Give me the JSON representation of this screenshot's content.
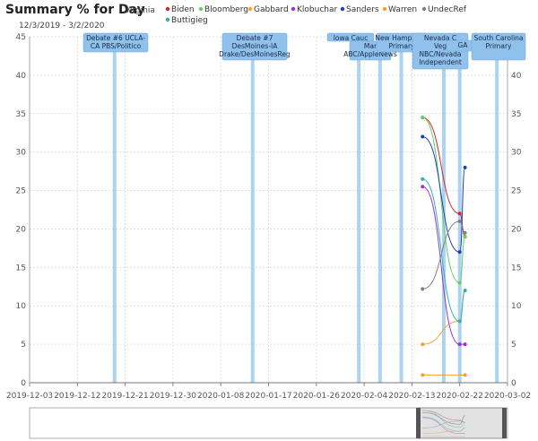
{
  "header": {
    "title": "Summary % for Day",
    "state": "Virginia",
    "date_range": "12/3/2019 - 3/2/2020"
  },
  "colors": {
    "Biden": "#d62728",
    "Bloomberg": "#5ed35e",
    "Gabbard": "#f2a02b",
    "Klobuchar": "#9b30d9",
    "Sanders": "#1f3fb5",
    "Warren": "#f2a02b",
    "UndecRef": "#808080",
    "Buttigieg": "#2bb5b0"
  },
  "chart_data": {
    "type": "line",
    "x_type": "date",
    "x_range": [
      "2019-12-03",
      "2020-03-02"
    ],
    "ylim": [
      0,
      45
    ],
    "y_ticks": [
      0,
      5,
      10,
      15,
      20,
      25,
      30,
      35,
      40,
      45
    ],
    "x_ticks": [
      "2019-12-03",
      "2019-12-12",
      "2019-12-21",
      "2019-12-30",
      "2020-01-08",
      "2020-01-17",
      "2020-01-26",
      "2020-02-04",
      "2020-02-13",
      "2020-02-22",
      "2020-03-02"
    ],
    "grid": true,
    "legend": [
      "Biden",
      "Bloomberg",
      "Gabbard",
      "Klobuchar",
      "Sanders",
      "Warren",
      "UndecRef",
      "Buttigieg"
    ],
    "series": [
      {
        "name": "Biden",
        "points": [
          [
            "2020-02-15",
            34.5
          ],
          [
            "2020-02-22",
            22
          ],
          [
            "2020-02-23",
            19
          ]
        ]
      },
      {
        "name": "Bloomberg",
        "points": [
          [
            "2020-02-15",
            34.5
          ],
          [
            "2020-02-22",
            13
          ],
          [
            "2020-02-23",
            19
          ]
        ]
      },
      {
        "name": "Gabbard",
        "points": [
          [
            "2020-02-15",
            1
          ],
          [
            "2020-02-23",
            1
          ]
        ]
      },
      {
        "name": "Klobuchar",
        "points": [
          [
            "2020-02-15",
            25.5
          ],
          [
            "2020-02-22",
            5
          ],
          [
            "2020-02-23",
            5
          ]
        ]
      },
      {
        "name": "Sanders",
        "points": [
          [
            "2020-02-15",
            32
          ],
          [
            "2020-02-22",
            17
          ],
          [
            "2020-02-23",
            28
          ]
        ]
      },
      {
        "name": "Warren",
        "points": [
          [
            "2020-02-15",
            5
          ],
          [
            "2020-02-22",
            8
          ],
          [
            "2020-02-23",
            12
          ]
        ]
      },
      {
        "name": "UndecRef",
        "points": [
          [
            "2020-02-15",
            12.2
          ],
          [
            "2020-02-22",
            21
          ],
          [
            "2020-02-23",
            19.5
          ]
        ]
      },
      {
        "name": "Buttigieg",
        "points": [
          [
            "2020-02-15",
            26.5
          ],
          [
            "2020-02-22",
            8
          ],
          [
            "2020-02-23",
            12
          ]
        ]
      }
    ],
    "events": [
      {
        "date": "2019-12-19",
        "label": [
          "Debate #6 UCLA-",
          "CA PBS/Politico"
        ]
      },
      {
        "date": "2020-01-14",
        "label": [
          "Debate #7",
          "DesMoines-IA",
          "Drake/DesMoinesReg"
        ]
      },
      {
        "date": "2020-02-03",
        "label": [
          "Iowa Cauc"
        ]
      },
      {
        "date": "2020-02-07",
        "label": [
          "Mar",
          "ABC/AppleNews"
        ]
      },
      {
        "date": "2020-02-11",
        "label": [
          "New Hampshire",
          "Primary"
        ]
      },
      {
        "date": "2020-02-19",
        "label": [
          "Nevada C",
          "Veg",
          "NBC/Nevada",
          "Independent"
        ]
      },
      {
        "date": "2020-02-22",
        "label": [
          "GA"
        ]
      },
      {
        "date": "2020-02-29",
        "label": [
          "South Carolina",
          "Primary"
        ]
      }
    ]
  }
}
